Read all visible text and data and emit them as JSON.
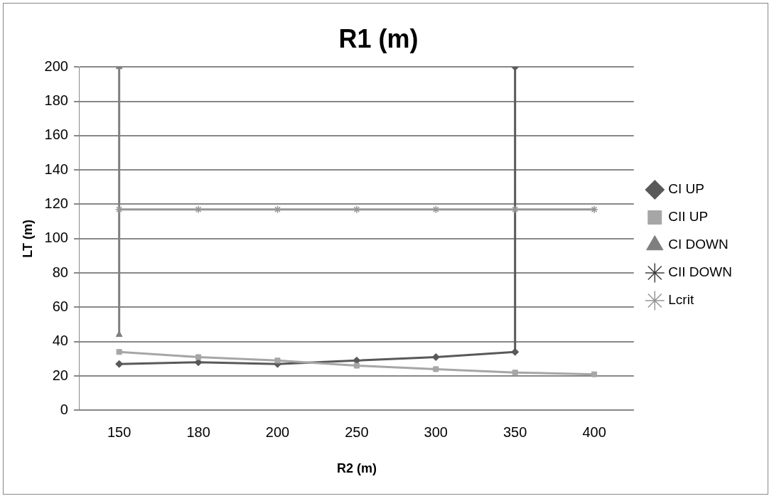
{
  "chart_data": {
    "type": "line",
    "title": "R1 (m)",
    "xlabel": "R2 (m)",
    "ylabel": "LT (m)",
    "categories": [
      "150",
      "180",
      "200",
      "250",
      "300",
      "350",
      "400"
    ],
    "series": [
      {
        "name": "CI UP",
        "color": "#595959",
        "marker": "diamond",
        "x": [
          "150",
          "180",
          "200",
          "250",
          "300",
          "350",
          "350"
        ],
        "values": [
          27,
          28,
          27,
          29,
          31,
          34,
          200
        ]
      },
      {
        "name": "CII UP",
        "color": "#a6a6a6",
        "marker": "square",
        "values": [
          34,
          31,
          29,
          26,
          24,
          22,
          21
        ]
      },
      {
        "name": "CI DOWN",
        "color": "#7f7f7f",
        "marker": "triangle",
        "x": [
          "150",
          "150"
        ],
        "values": [
          44,
          200
        ]
      },
      {
        "name": "CII DOWN",
        "color": "#404040",
        "marker": "cross",
        "values": [
          null,
          null,
          null,
          null,
          null,
          null,
          null
        ]
      },
      {
        "name": "Lcrit",
        "color": "#969696",
        "marker": "cross",
        "values": [
          117,
          117,
          117,
          117,
          117,
          117,
          117
        ]
      }
    ],
    "ylim": [
      0,
      200
    ],
    "yticks": [
      0,
      20,
      40,
      60,
      80,
      100,
      120,
      140,
      160,
      180,
      200
    ],
    "grid": "y",
    "legend": "right"
  }
}
